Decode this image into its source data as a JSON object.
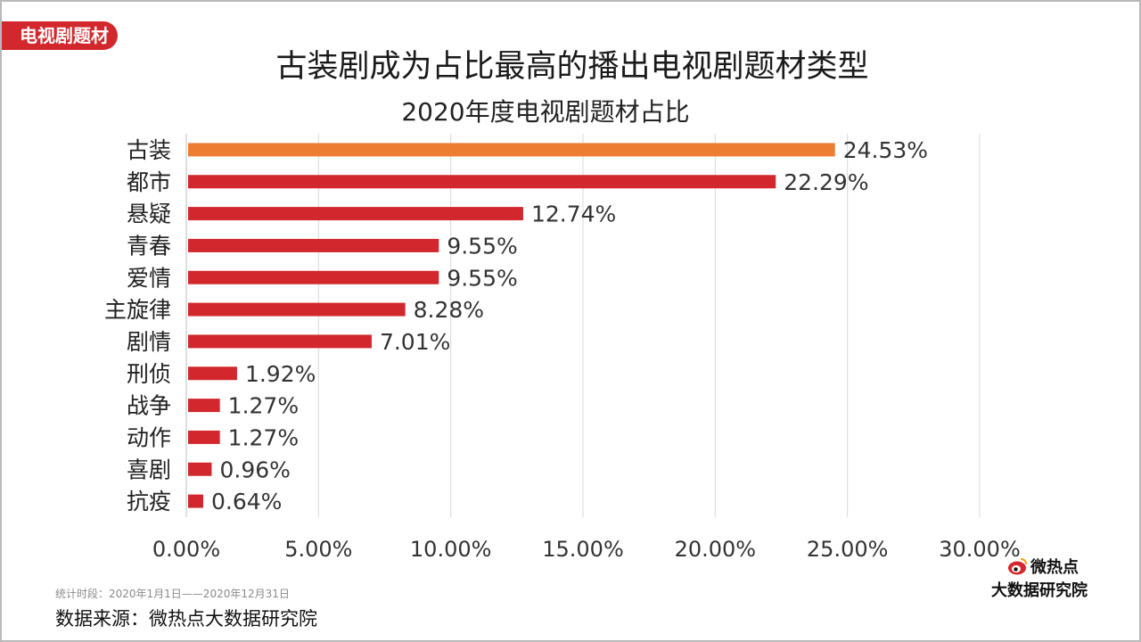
{
  "tag": "电视剧题材",
  "title": "古装剧成为占比最高的播出电视剧题材类型",
  "note": "统计时段：2020年1月1日——2020年12月31日",
  "source": "数据来源：微热点大数据研究院",
  "logo": {
    "line1": "微热点",
    "line2": "大数据研究院"
  },
  "colors": {
    "highlight": "#ed7d31",
    "bar": "#d2282d",
    "tag": "#d2282d"
  },
  "chart_data": {
    "type": "bar",
    "orientation": "horizontal",
    "title": "2020年度电视剧题材占比",
    "categories": [
      "古装",
      "都市",
      "悬疑",
      "青春",
      "爱情",
      "主旋律",
      "剧情",
      "刑侦",
      "战争",
      "动作",
      "喜剧",
      "抗疫"
    ],
    "values": [
      24.53,
      22.29,
      12.74,
      9.55,
      9.55,
      8.28,
      7.01,
      1.92,
      1.27,
      1.27,
      0.96,
      0.64
    ],
    "value_labels": [
      "24.53%",
      "22.29%",
      "12.74%",
      "9.55%",
      "9.55%",
      "8.28%",
      "7.01%",
      "1.92%",
      "1.27%",
      "1.27%",
      "0.96%",
      "0.64%"
    ],
    "highlight_index": 0,
    "xlim": [
      0,
      30
    ],
    "xticks": [
      0,
      5,
      10,
      15,
      20,
      25,
      30
    ],
    "xtick_labels": [
      "0.00%",
      "5.00%",
      "10.00%",
      "15.00%",
      "20.00%",
      "25.00%",
      "30.00%"
    ],
    "grid": true,
    "legend": false
  }
}
